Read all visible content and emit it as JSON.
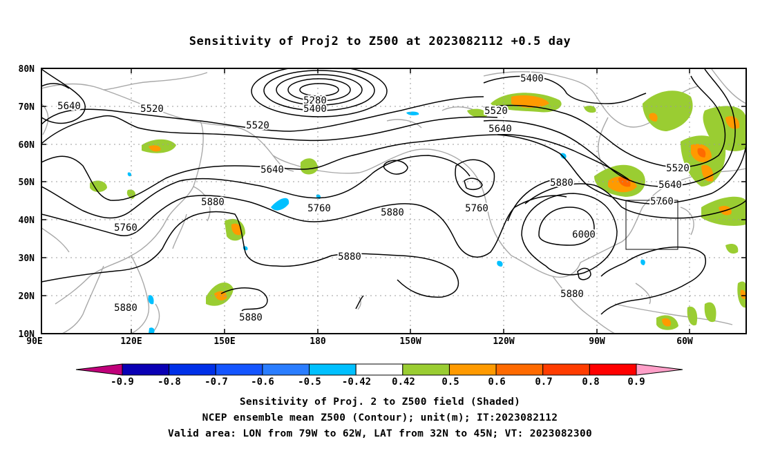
{
  "title": "Sensitivity of Proj2 to Z500 at 2023082112 +0.5 day",
  "y_axis_labels": [
    "80N",
    "70N",
    "60N",
    "50N",
    "40N",
    "30N",
    "20N",
    "10N"
  ],
  "x_axis_labels": [
    "90E",
    "120E",
    "150E",
    "180",
    "150W",
    "120W",
    "90W",
    "60W"
  ],
  "contour_labels": [
    "5640",
    "5520",
    "5280",
    "5400",
    "5400",
    "5520",
    "5520",
    "5640",
    "5640",
    "5760",
    "5880",
    "5760",
    "5880",
    "5760",
    "5880",
    "5640",
    "5520",
    "5880",
    "6000",
    "5760",
    "5880",
    "5880",
    "5880"
  ],
  "colorbar": {
    "tick_labels": [
      "-0.9",
      "-0.8",
      "-0.7",
      "-0.6",
      "-0.5",
      "-0.42",
      "0.42",
      "0.5",
      "0.6",
      "0.7",
      "0.8",
      "0.9"
    ],
    "colors": [
      "#c0007a",
      "#0a00b4",
      "#0030e8",
      "#1455ff",
      "#2a7dff",
      "#00c0ff",
      "#ffffff",
      "#9acd32",
      "#ff9a00",
      "#ff6a00",
      "#ff3c00",
      "#ff0000",
      "#ff9fc8"
    ]
  },
  "footer": {
    "line1": "Sensitivity of Proj. 2 to Z500 field (Shaded)",
    "line2": "NCEP ensemble mean Z500 (Contour); unit(m); IT:2023082112",
    "line3": "Valid area: LON from 79W to 62W, LAT from 32N to 45N; VT: 2023082300"
  },
  "colors": {
    "contour": "#000000",
    "coastline": "#a8a8a8",
    "grid": "#9a9a9a",
    "positive": "#9acd32",
    "positive_mid": "#ff9a00",
    "positive_high": "#ff6a00",
    "negative": "#00c0ff"
  }
}
